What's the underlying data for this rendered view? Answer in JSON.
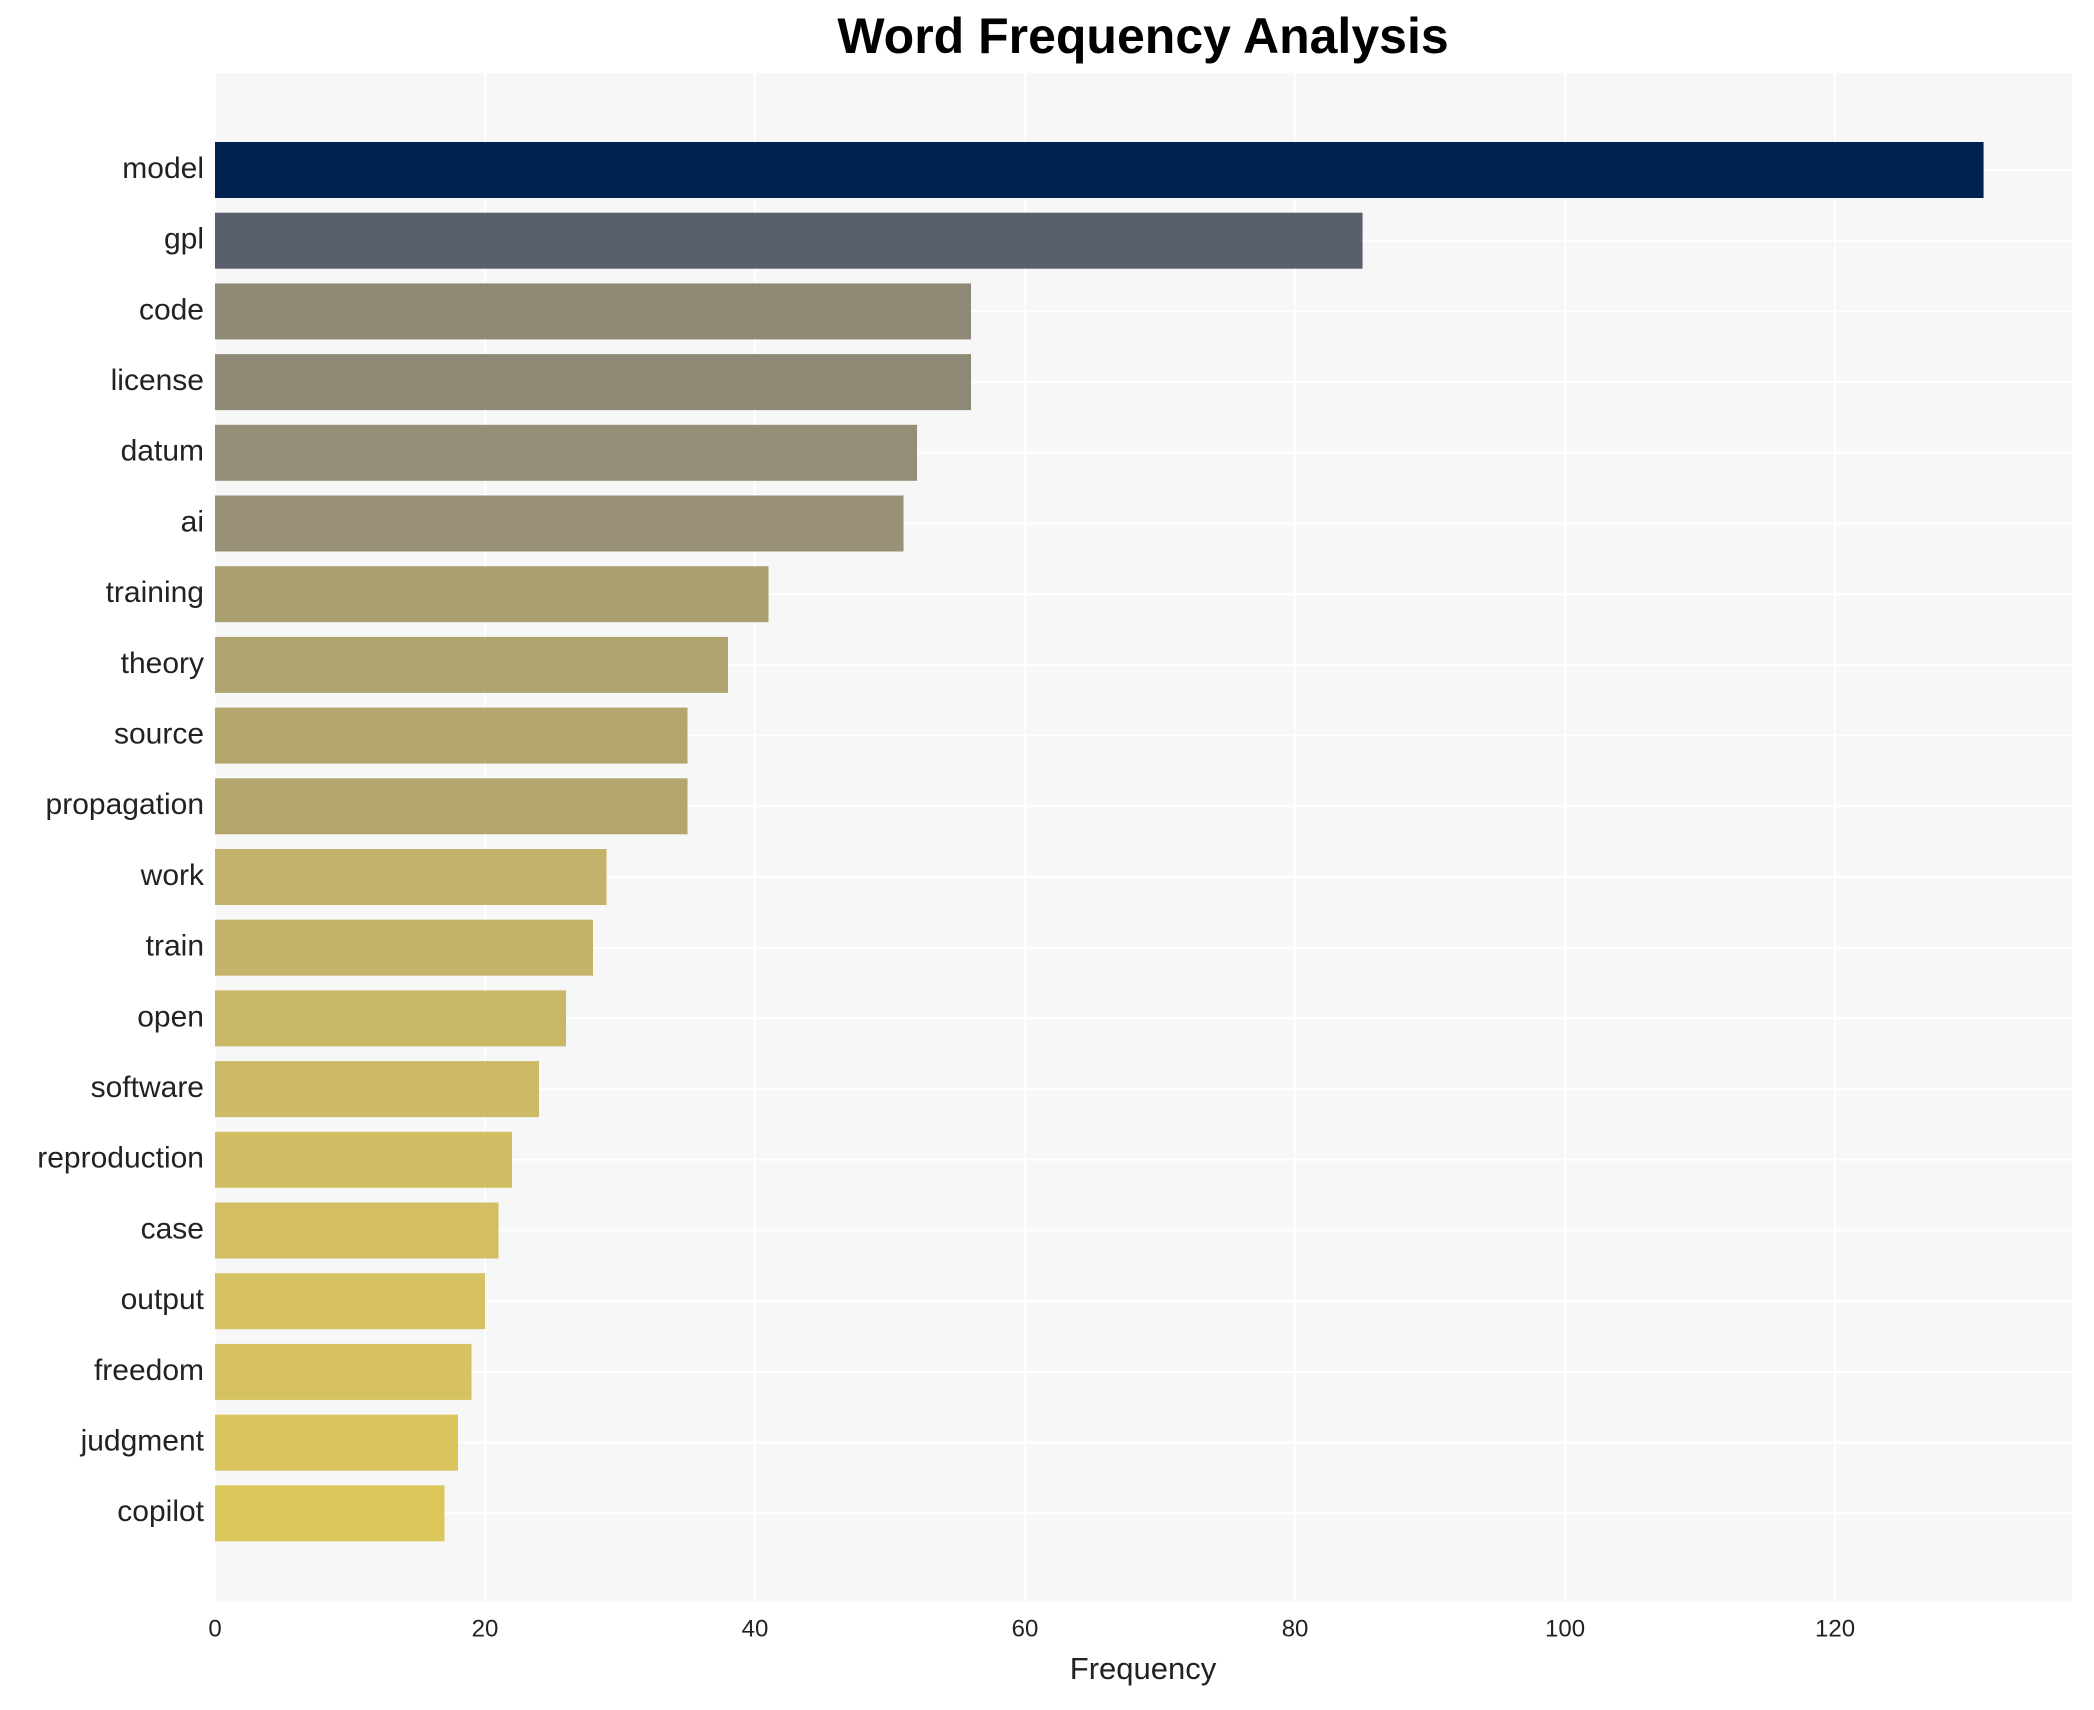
{
  "chart_data": {
    "type": "barh",
    "title": "Word Frequency Analysis",
    "x_label": "Frequency",
    "categories": [
      "model",
      "gpl",
      "code",
      "license",
      "datum",
      "ai",
      "training",
      "theory",
      "source",
      "propagation",
      "work",
      "train",
      "open",
      "software",
      "reproduction",
      "case",
      "output",
      "freedom",
      "judgment",
      "copilot"
    ],
    "values": [
      131,
      85,
      56,
      56,
      52,
      51,
      41,
      38,
      35,
      35,
      29,
      28,
      26,
      24,
      22,
      21,
      20,
      19,
      18,
      17
    ],
    "colors": [
      "#002250",
      "#5a5f6e",
      "#8e8975",
      "#8e8975",
      "#958e76",
      "#989177",
      "#aaa070",
      "#aea46f",
      "#b4a76e",
      "#b4a76e",
      "#c2b26a",
      "#c4b369",
      "#c9b768",
      "#cdba66",
      "#d1bd64",
      "#d3be63",
      "#d5c062",
      "#d7c261",
      "#d9c45e",
      "#dcc75b"
    ],
    "xlim": [
      0,
      137.55
    ],
    "xticks": [
      0,
      20,
      40,
      60,
      80,
      100,
      120
    ],
    "grid": true
  }
}
